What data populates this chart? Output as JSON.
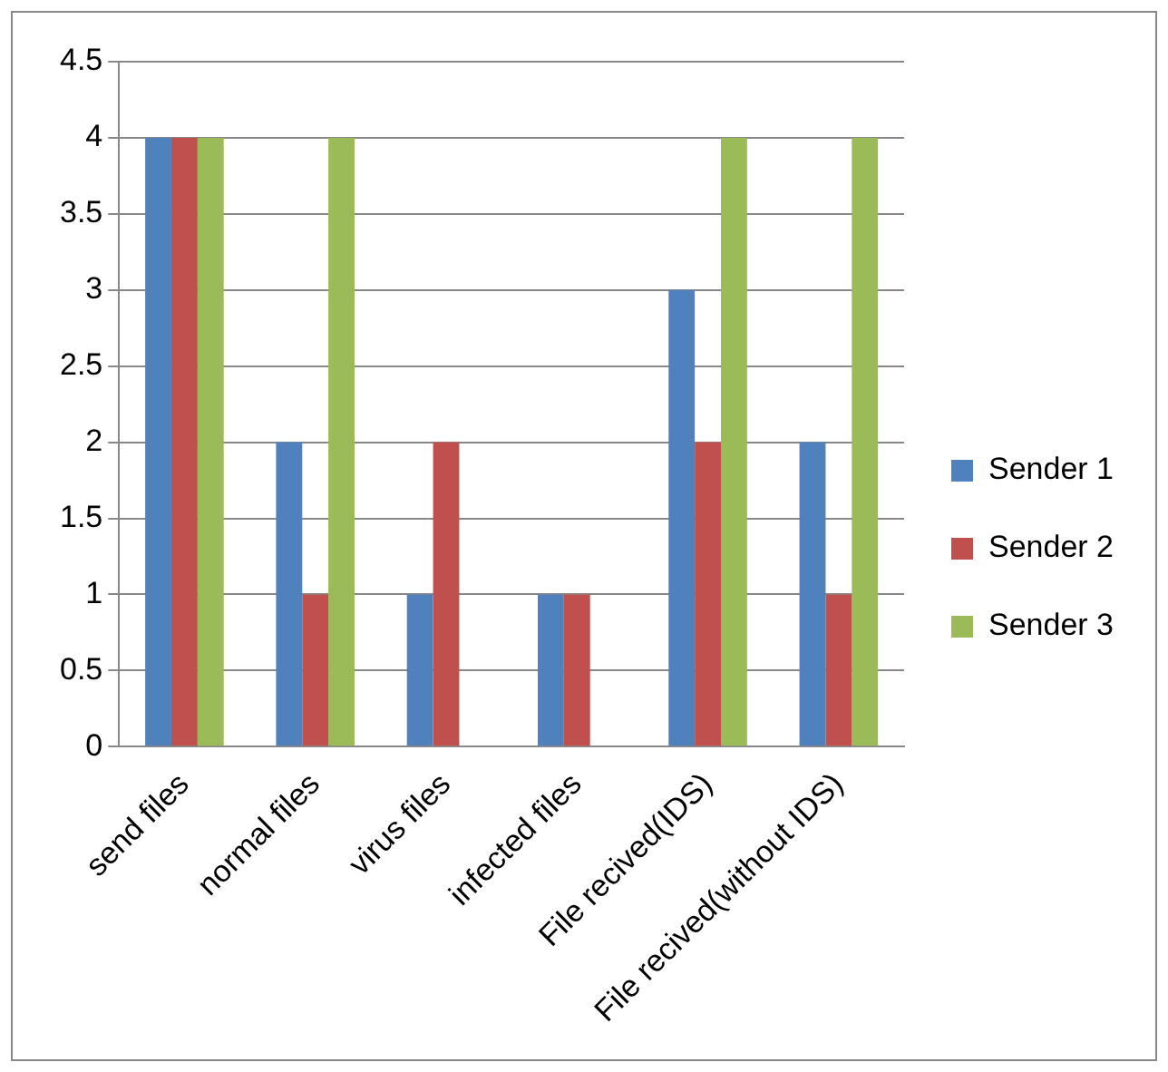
{
  "chart_data": {
    "type": "bar",
    "categories": [
      "send files",
      "normal files",
      "virus files",
      "infected files",
      "File recived(IDS)",
      "File recived(without IDS)"
    ],
    "series": [
      {
        "name": "Sender 1",
        "color": "#4f81bd",
        "values": [
          4,
          2,
          1,
          1,
          3,
          2
        ]
      },
      {
        "name": "Sender 2",
        "color": "#c0504d",
        "values": [
          4,
          1,
          2,
          1,
          2,
          1
        ]
      },
      {
        "name": "Sender 3",
        "color": "#9bbb59",
        "values": [
          4,
          4,
          0,
          0,
          4,
          4
        ]
      }
    ],
    "ylim": [
      0,
      4.5
    ],
    "yticks": [
      0,
      0.5,
      1,
      1.5,
      2,
      2.5,
      3,
      3.5,
      4,
      4.5
    ],
    "grid": "y",
    "legend": "right"
  }
}
